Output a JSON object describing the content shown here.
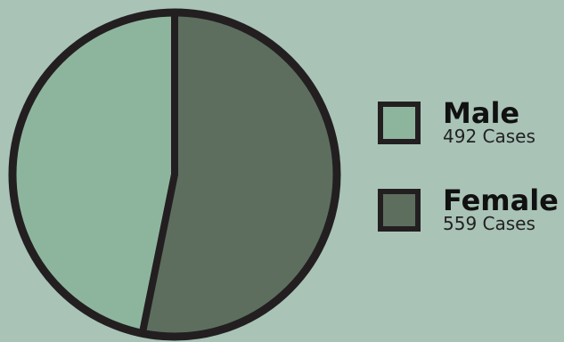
{
  "chart_data": {
    "type": "pie",
    "title": "",
    "slices": [
      {
        "name": "Male",
        "value": 492,
        "label": "492 Cases",
        "color": "#8db59d"
      },
      {
        "name": "Female",
        "value": 559,
        "label": "559 Cases",
        "color": "#5d6e5f"
      }
    ],
    "legend_position": "right",
    "outline_color": "#231f20",
    "background_color": "#a9c3b7"
  }
}
